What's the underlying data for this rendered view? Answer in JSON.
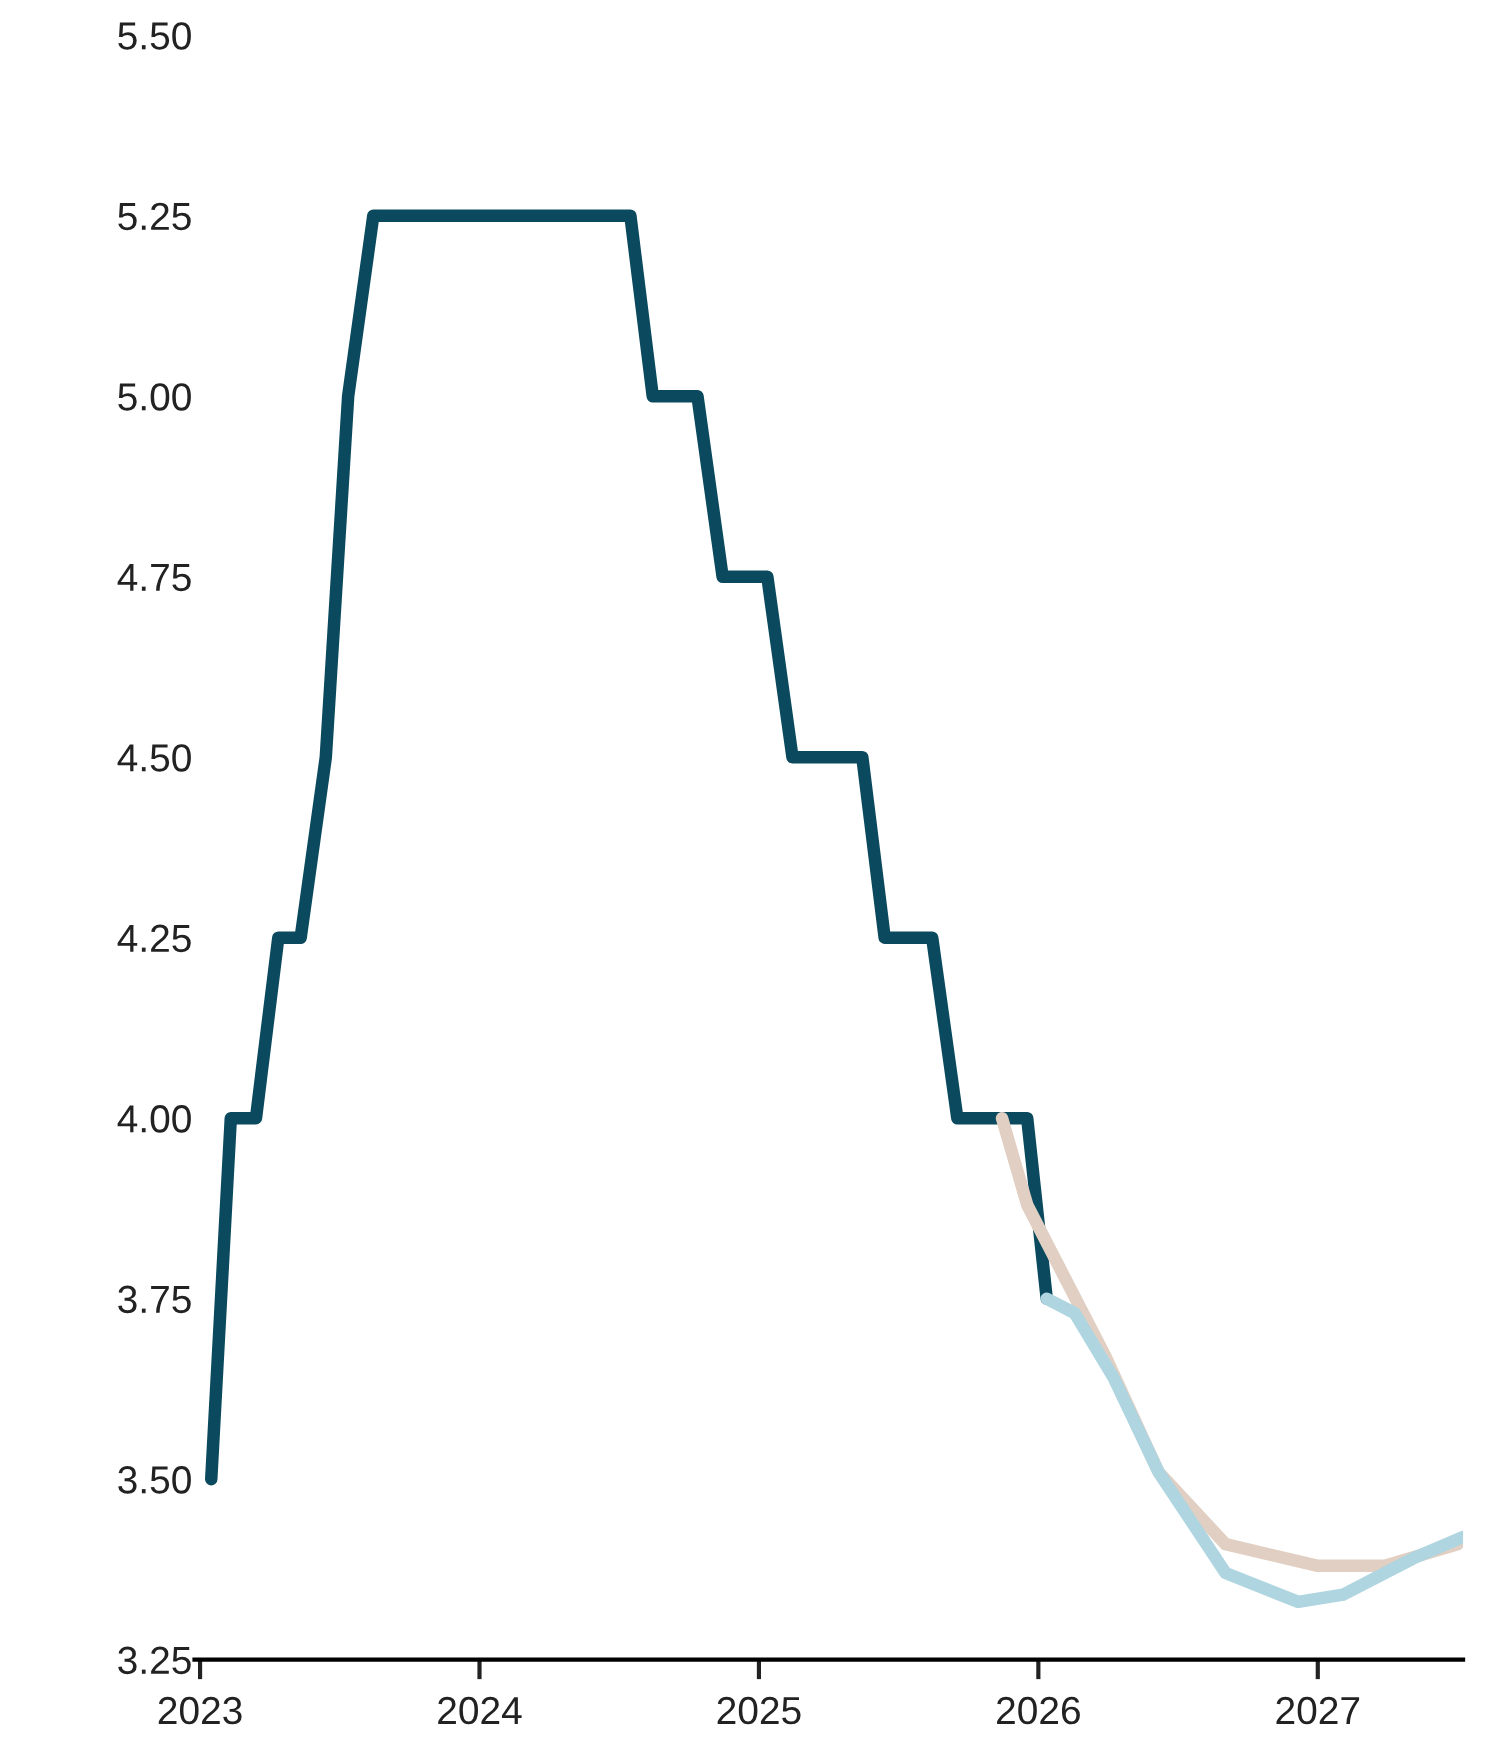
{
  "chart_data": {
    "type": "line",
    "xlim": [
      2022.98,
      2027.52
    ],
    "ylim": [
      3.25,
      5.5
    ],
    "xticks": [
      2023,
      2024,
      2025,
      2026,
      2027
    ],
    "yticks": [
      {
        "value": 3.25,
        "label": "3.25"
      },
      {
        "value": 3.5,
        "label": "3.50"
      },
      {
        "value": 3.75,
        "label": "3.75"
      },
      {
        "value": 4.0,
        "label": "4.00"
      },
      {
        "value": 4.25,
        "label": "4.25"
      },
      {
        "value": 4.5,
        "label": "4.50"
      },
      {
        "value": 4.75,
        "label": "4.75"
      },
      {
        "value": 5.0,
        "label": "5.00"
      },
      {
        "value": 5.25,
        "label": "5.25"
      },
      {
        "value": 5.5,
        "label": "5.50"
      }
    ],
    "marker": "none",
    "line_style": "solid",
    "series": [
      {
        "color": "#0b4a5e",
        "x": [
          2023.04,
          2023.11,
          2023.2,
          2023.28,
          2023.36,
          2023.45,
          2023.53,
          2023.62,
          2024.54,
          2024.62,
          2024.78,
          2024.87,
          2025.03,
          2025.12,
          2025.37,
          2025.45,
          2025.62,
          2025.71,
          2025.96,
          2026.03
        ],
        "values": [
          3.5,
          4.0,
          4.0,
          4.25,
          4.25,
          4.5,
          5.0,
          5.25,
          5.25,
          5.0,
          5.0,
          4.75,
          4.75,
          4.5,
          4.5,
          4.25,
          4.25,
          4.0,
          4.0,
          3.75
        ]
      },
      {
        "color": "#e0cfc2",
        "x": [
          2025.87,
          2025.96,
          2026.24,
          2026.43,
          2026.67,
          2027.0,
          2027.24,
          2027.5
        ],
        "values": [
          4.0,
          3.88,
          3.67,
          3.51,
          3.41,
          3.38,
          3.38,
          3.41
        ]
      },
      {
        "color": "#aed5e0",
        "x": [
          2026.03,
          2026.13,
          2026.27,
          2026.43,
          2026.67,
          2026.93,
          2027.09,
          2027.34,
          2027.52
        ],
        "values": [
          3.75,
          3.73,
          3.64,
          3.51,
          3.37,
          3.33,
          3.34,
          3.39,
          3.42
        ]
      }
    ]
  }
}
